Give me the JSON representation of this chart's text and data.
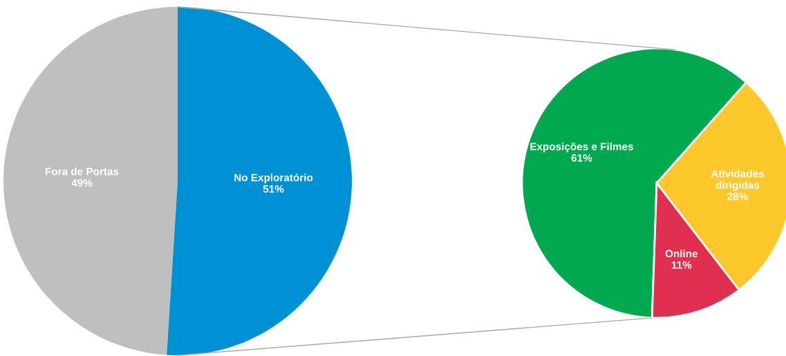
{
  "chart_data": [
    {
      "type": "pie",
      "categories": [
        "Fora de Portas",
        "No Exploratório"
      ],
      "values": [
        49,
        51
      ],
      "colors": [
        "#bfbfbf",
        "#0091d5"
      ],
      "value_labels": [
        "49%",
        "51%"
      ]
    },
    {
      "type": "pie",
      "categories": [
        "Exposições e Filmes",
        "Atividades dirigidas",
        "Online"
      ],
      "values": [
        61,
        28,
        11
      ],
      "colors": [
        "#00a84f",
        "#fcc72a",
        "#e0304f"
      ],
      "value_labels": [
        "61%",
        "28%",
        "11%"
      ]
    }
  ]
}
